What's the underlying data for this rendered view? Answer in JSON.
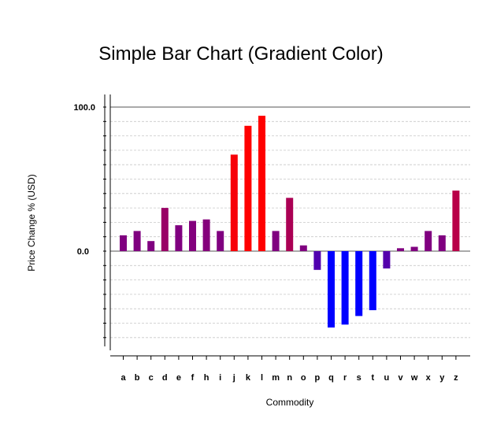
{
  "chart_data": {
    "type": "bar",
    "title": "Simple Bar Chart (Gradient Color)",
    "xlabel": "Commodity",
    "ylabel": "Price Change % (USD)",
    "yticks": [
      "100.0",
      "0.0"
    ],
    "ylim": [
      -68,
      101
    ],
    "grid": true,
    "legend": "none",
    "categories": [
      "a",
      "b",
      "c",
      "d",
      "e",
      "f",
      "h",
      "i",
      "j",
      "k",
      "l",
      "m",
      "n",
      "o",
      "p",
      "q",
      "r",
      "s",
      "t",
      "u",
      "v",
      "w",
      "x",
      "y",
      "z"
    ],
    "values": [
      11,
      14,
      7,
      30,
      18,
      21,
      22,
      14,
      67,
      87,
      94,
      14,
      37,
      4,
      -13,
      -53,
      -51,
      -45,
      -41,
      -12,
      2,
      3,
      14,
      11,
      42
    ],
    "colors": {
      "high": "#ff0000",
      "mid": "#800080",
      "low": "#0000ff",
      "grid": "#c8c8c8",
      "axis": "#000000"
    }
  }
}
